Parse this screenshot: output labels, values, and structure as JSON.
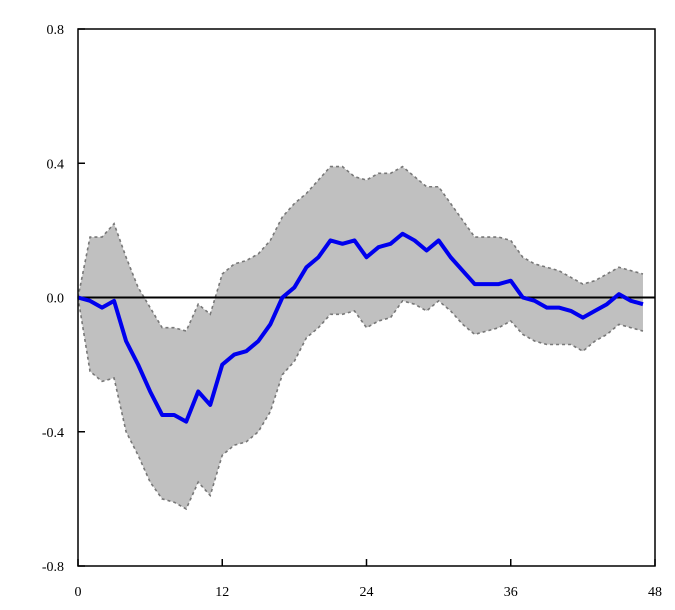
{
  "chart_data": {
    "type": "line",
    "title": "",
    "xlabel": "",
    "ylabel": "",
    "xlim": [
      0,
      48
    ],
    "ylim": [
      -0.8,
      0.8
    ],
    "xticks": [
      0,
      12,
      24,
      36,
      48
    ],
    "xtick_labels": [
      "0",
      "12",
      "24",
      "36",
      "48"
    ],
    "yticks": [
      0.8,
      0.4,
      0.0,
      -0.4,
      -0.8
    ],
    "ytick_labels": [
      "0.8",
      "0.4",
      "0.0",
      "-0.4",
      "-0.8"
    ],
    "grid": false,
    "zero_line": true,
    "x": [
      0,
      1,
      2,
      3,
      4,
      5,
      6,
      7,
      8,
      9,
      10,
      11,
      12,
      13,
      14,
      15,
      16,
      17,
      18,
      19,
      20,
      21,
      22,
      23,
      24,
      25,
      26,
      27,
      28,
      29,
      30,
      31,
      32,
      33,
      34,
      35,
      36,
      37,
      38,
      39,
      40,
      41,
      42,
      43,
      44,
      45,
      46,
      47
    ],
    "series": [
      {
        "role": "response",
        "color": "#0000ee",
        "values": [
          0.0,
          -0.01,
          -0.03,
          -0.01,
          -0.13,
          -0.2,
          -0.28,
          -0.35,
          -0.35,
          -0.37,
          -0.28,
          -0.32,
          -0.2,
          -0.17,
          -0.16,
          -0.13,
          -0.08,
          0.0,
          0.03,
          0.09,
          0.12,
          0.17,
          0.16,
          0.17,
          0.12,
          0.15,
          0.16,
          0.19,
          0.17,
          0.14,
          0.17,
          0.12,
          0.08,
          0.04,
          0.04,
          0.04,
          0.05,
          0.0,
          -0.01,
          -0.03,
          -0.03,
          -0.04,
          -0.06,
          -0.04,
          -0.02,
          0.01,
          -0.01,
          -0.02
        ]
      },
      {
        "role": "upper_band",
        "color": "#777777",
        "values": [
          0.0,
          0.18,
          0.18,
          0.22,
          0.12,
          0.03,
          -0.03,
          -0.09,
          -0.09,
          -0.1,
          -0.02,
          -0.05,
          0.07,
          0.1,
          0.11,
          0.13,
          0.17,
          0.24,
          0.28,
          0.31,
          0.35,
          0.39,
          0.39,
          0.36,
          0.35,
          0.37,
          0.37,
          0.39,
          0.36,
          0.33,
          0.33,
          0.28,
          0.23,
          0.18,
          0.18,
          0.18,
          0.17,
          0.12,
          0.1,
          0.09,
          0.08,
          0.06,
          0.04,
          0.05,
          0.07,
          0.09,
          0.08,
          0.07
        ]
      },
      {
        "role": "lower_band",
        "color": "#777777",
        "values": [
          0.0,
          -0.22,
          -0.25,
          -0.24,
          -0.4,
          -0.47,
          -0.55,
          -0.6,
          -0.61,
          -0.63,
          -0.55,
          -0.59,
          -0.47,
          -0.44,
          -0.43,
          -0.4,
          -0.34,
          -0.23,
          -0.19,
          -0.12,
          -0.09,
          -0.05,
          -0.05,
          -0.04,
          -0.09,
          -0.07,
          -0.06,
          -0.01,
          -0.02,
          -0.04,
          -0.01,
          -0.04,
          -0.08,
          -0.11,
          -0.1,
          -0.09,
          -0.07,
          -0.11,
          -0.13,
          -0.14,
          -0.14,
          -0.14,
          -0.16,
          -0.13,
          -0.11,
          -0.08,
          -0.09,
          -0.1
        ]
      }
    ],
    "band_fill_color": "#c0c0c0",
    "axis_color": "#000000"
  }
}
